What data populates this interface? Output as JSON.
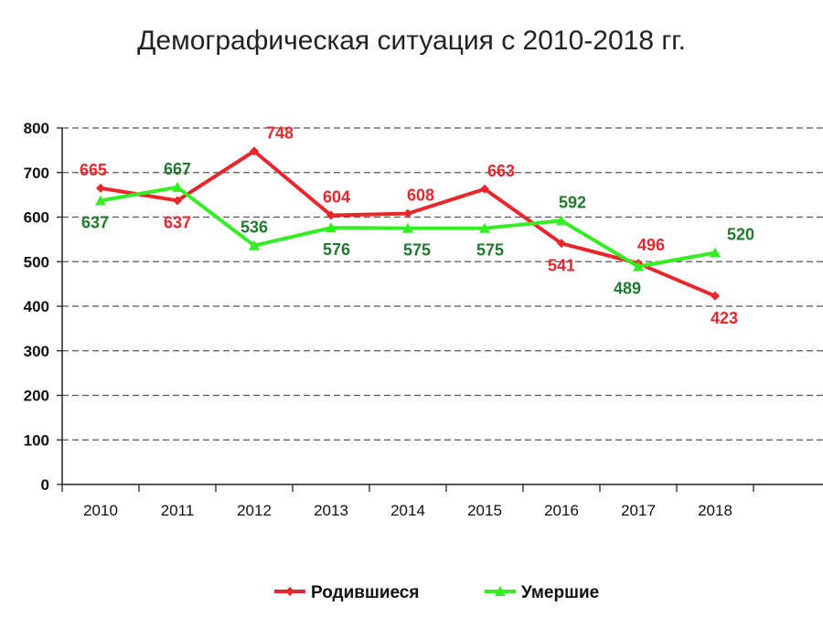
{
  "chart_data": {
    "type": "line",
    "title": "Демографическая ситуация с 2010-2018 гг.",
    "xlabel": "",
    "ylabel": "",
    "categories": [
      "2010",
      "2011",
      "2012",
      "2013",
      "2014",
      "2015",
      "2016",
      "2017",
      "2018"
    ],
    "ylim": [
      0,
      800
    ],
    "yticks": [
      "0",
      "100",
      "200",
      "300",
      "400",
      "500",
      "600",
      "700",
      "800"
    ],
    "grid": "horizontal-dashed",
    "legend_position": "bottom-center",
    "series": [
      {
        "name": "Родившиеся",
        "color": "#e8262b",
        "label_color": "#e8262b",
        "values": [
          665,
          637,
          748,
          604,
          608,
          663,
          541,
          496,
          423
        ],
        "labels": [
          "665",
          "637",
          "748",
          "604",
          "608",
          "663",
          "541",
          "496",
          "423"
        ]
      },
      {
        "name": "Умершие",
        "color": "#33ee22",
        "label_color": "#1f7a2e",
        "values": [
          637,
          667,
          536,
          576,
          575,
          575,
          592,
          489,
          520
        ],
        "labels": [
          "637",
          "667",
          "536",
          "576",
          "575",
          "575",
          "592",
          "489",
          "520"
        ]
      }
    ]
  }
}
